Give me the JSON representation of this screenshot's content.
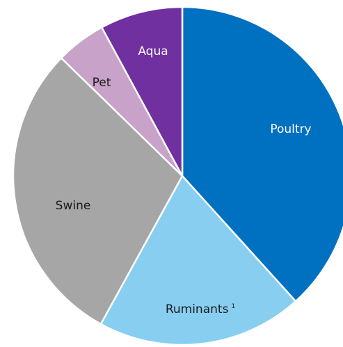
{
  "chart_data": {
    "type": "pie",
    "title": "",
    "slices": [
      {
        "label": "Poultry",
        "note": "",
        "value": 38.3,
        "color": "#0070c0",
        "label_color": "#ffffff"
      },
      {
        "label": "Ruminants",
        "note": "1",
        "value": 19.7,
        "color": "#87cef0",
        "label_color": "#1a1a1a"
      },
      {
        "label": "Swine",
        "note": "",
        "value": 29.3,
        "color": "#a6a6a6",
        "label_color": "#1a1a1a"
      },
      {
        "label": "Pet",
        "note": "",
        "value": 4.8,
        "color": "#c8a2c8",
        "label_color": "#1a1a1a"
      },
      {
        "label": "Aqua",
        "note": "",
        "value": 7.9,
        "color": "#7030a0",
        "label_color": "#ffffff"
      }
    ],
    "start_angle_deg": 0,
    "direction": "clockwise"
  }
}
